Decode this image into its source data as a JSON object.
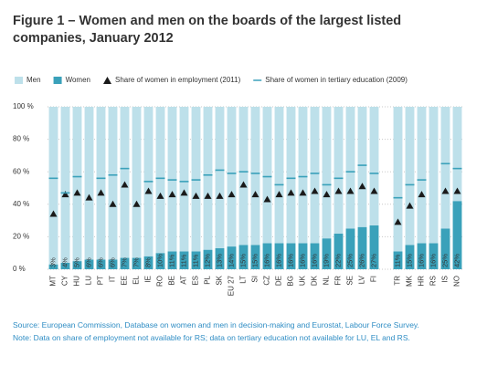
{
  "chart_data": {
    "type": "bar",
    "title": "Figure 1 – Women and men on the boards of the largest listed companies, January 2012",
    "categories": [
      "MT",
      "CY",
      "HU",
      "LU",
      "PT",
      "IT",
      "EE",
      "EL",
      "IE",
      "RO",
      "BE",
      "AT",
      "ES",
      "PL",
      "SK",
      "EU 27",
      "LT",
      "SI",
      "CZ",
      "DE",
      "BG",
      "UK",
      "DK",
      "NL",
      "FR",
      "SE",
      "LV",
      "FI",
      null,
      "TR",
      "MK",
      "HR",
      "RS",
      "IS",
      "NO"
    ],
    "series": [
      {
        "name": "Men",
        "type": "bar",
        "color": "#bde0ea",
        "values": [
          97,
          96,
          95,
          94,
          94,
          94,
          93,
          93,
          92,
          90,
          89,
          89,
          89,
          88,
          87,
          86,
          85,
          85,
          84,
          84,
          84,
          84,
          84,
          81,
          78,
          75,
          74,
          73,
          null,
          89,
          85,
          84,
          84,
          75,
          58
        ]
      },
      {
        "name": "Women",
        "type": "bar",
        "color": "#3aa1ba",
        "values": [
          3,
          4,
          5,
          6,
          6,
          6,
          7,
          7,
          8,
          10,
          11,
          11,
          11,
          12,
          13,
          14,
          15,
          15,
          16,
          16,
          16,
          16,
          16,
          19,
          22,
          25,
          26,
          27,
          null,
          11,
          15,
          16,
          16,
          25,
          42
        ],
        "value_labels": [
          "3%",
          "4%",
          "5%",
          "6%",
          "6%",
          "6%",
          "7%",
          "7%",
          "8%",
          "10%",
          "11%",
          "11%",
          "11%",
          "12%",
          "13%",
          "14%",
          "15%",
          "15%",
          "16%",
          "16%",
          "16%",
          "16%",
          "16%",
          "19%",
          "22%",
          "25%",
          "26%",
          "27%",
          null,
          "11%",
          "15%",
          "16%",
          "16%",
          "25%",
          "42%"
        ]
      },
      {
        "name": "Share of women in employment (2011)",
        "type": "triangle",
        "color": "#1a1a1a",
        "values": [
          34,
          46,
          47,
          44,
          47,
          40,
          52,
          40,
          48,
          45,
          46,
          47,
          45,
          45,
          45,
          46,
          52,
          46,
          43,
          46,
          47,
          47,
          48,
          46,
          48,
          48,
          51,
          48,
          null,
          29,
          39,
          46,
          null,
          48,
          48
        ]
      },
      {
        "name": "Share of women in tertiary education (2009)",
        "type": "dash",
        "color": "#3aa1ba",
        "values": [
          56,
          47,
          57,
          null,
          56,
          58,
          62,
          null,
          54,
          56,
          55,
          54,
          55,
          58,
          61,
          59,
          60,
          59,
          57,
          52,
          56,
          57,
          59,
          52,
          56,
          60,
          64,
          59,
          null,
          44,
          52,
          55,
          null,
          65,
          62
        ]
      }
    ],
    "ylim": [
      0,
      100
    ],
    "yticks": [
      {
        "value": 0,
        "label": "0 %"
      },
      {
        "value": 20,
        "label": "20 %"
      },
      {
        "value": 40,
        "label": "40 %"
      },
      {
        "value": 60,
        "label": "60 %"
      },
      {
        "value": 80,
        "label": "80 %"
      },
      {
        "value": 100,
        "label": "100 %"
      }
    ],
    "grid": true,
    "source": "Source: European Commission, Database on women and men in decision-making and Eurostat, Labour Force Survey.",
    "note": "Note: Data on share of employment not available for RS; data on tertiary education not available for LU, EL and RS."
  }
}
